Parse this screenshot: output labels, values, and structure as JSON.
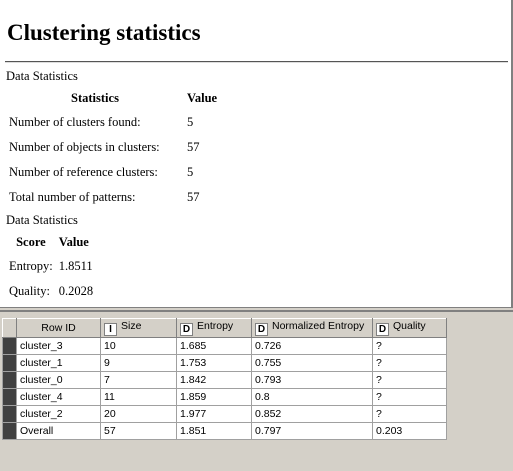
{
  "report": {
    "title": "Clustering statistics",
    "section1_title": "Data Statistics",
    "table1": {
      "headers": [
        "Statistics",
        "Value"
      ],
      "rows": [
        [
          "Number of clusters found:",
          "5"
        ],
        [
          "Number of objects in clusters:",
          "57"
        ],
        [
          "Number of reference clusters:",
          "5"
        ],
        [
          "Total number of patterns:",
          "57"
        ]
      ]
    },
    "section2_title": "Data Statistics",
    "table2": {
      "headers": [
        "Score",
        "Value"
      ],
      "rows": [
        [
          "Entropy:",
          "1.8511"
        ],
        [
          "Quality:",
          "0.2028"
        ]
      ]
    }
  },
  "grid": {
    "columns": [
      {
        "label": "Row ID",
        "type_badge": ""
      },
      {
        "label": "Size",
        "type_badge": "I"
      },
      {
        "label": "Entropy",
        "type_badge": "D"
      },
      {
        "label": "Normalized Entropy",
        "type_badge": "D"
      },
      {
        "label": "Quality",
        "type_badge": "D"
      }
    ],
    "rows": [
      [
        "cluster_3",
        "10",
        "1.685",
        "0.726",
        "?"
      ],
      [
        "cluster_1",
        "9",
        "1.753",
        "0.755",
        "?"
      ],
      [
        "cluster_0",
        "7",
        "1.842",
        "0.793",
        "?"
      ],
      [
        "cluster_4",
        "11",
        "1.859",
        "0.8",
        "?"
      ],
      [
        "cluster_2",
        "20",
        "1.977",
        "0.852",
        "?"
      ],
      [
        "Overall",
        "57",
        "1.851",
        "0.797",
        "0.203"
      ]
    ]
  }
}
